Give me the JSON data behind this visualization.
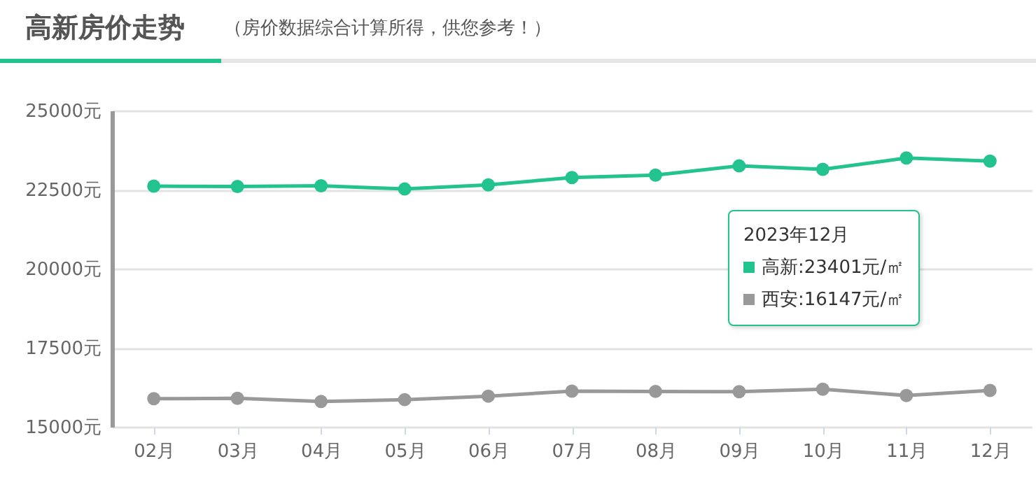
{
  "chart_data": {
    "type": "line",
    "title": "高新房价走势",
    "subtitle": "（房价数据综合计算所得，供您参考！）",
    "categories": [
      "02月",
      "03月",
      "04月",
      "05月",
      "06月",
      "07月",
      "08月",
      "09月",
      "10月",
      "11月",
      "12月"
    ],
    "series": [
      {
        "color": "#22c38e",
        "values": [
          22610,
          22600,
          22620,
          22520,
          22650,
          22880,
          22960,
          23250,
          23140,
          23500,
          23400
        ]
      },
      {
        "color": "#999999",
        "values": [
          15890,
          15900,
          15800,
          15860,
          15970,
          16130,
          16120,
          16110,
          16190,
          15990,
          16150
        ]
      }
    ],
    "ylim": [
      15000,
      25000
    ],
    "yticks": [
      {
        "value": 15000,
        "label": "15000元"
      },
      {
        "value": 17500,
        "label": "17500元"
      },
      {
        "value": 20000,
        "label": "20000元"
      },
      {
        "value": 22500,
        "label": "22500元"
      },
      {
        "value": 25000,
        "label": "25000元"
      }
    ],
    "grid": "y",
    "marker": "circle",
    "line_style": "solid",
    "annotations": [
      "2023年12月",
      "高新:23401元/㎡",
      "西安:16147元/㎡"
    ]
  }
}
